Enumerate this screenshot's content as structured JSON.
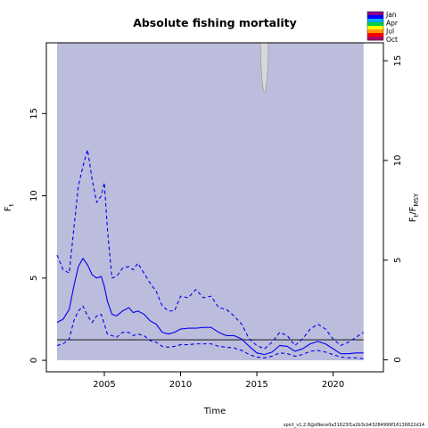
{
  "chart_data": {
    "type": "line",
    "title": "Absolute fishing mortality",
    "xlabel": "Time",
    "ylabel_left": "F",
    "ylabel_left_sub": "t",
    "ylabel_right_parts": [
      "F",
      "t",
      "/F",
      "MSY"
    ],
    "xlim": [
      2001.2,
      2023.3
    ],
    "ylim_left": [
      -0.7,
      19.3
    ],
    "ylim_right": [
      -0.6,
      15.9
    ],
    "x_ticks": [
      2005,
      2010,
      2015,
      2020
    ],
    "y_ticks_left": [
      0,
      5,
      10,
      15
    ],
    "y_ticks_right": [
      0,
      5,
      10,
      15
    ],
    "grid": false,
    "legend": {
      "placement": "top-right",
      "labels": [
        "Jan",
        "Apr",
        "Jul",
        "Oct"
      ],
      "colors": [
        "#8b008b",
        "#0000ff",
        "#00aaff",
        "#00cc44",
        "#ffff00",
        "#ff9900",
        "#ff0000",
        "#aa0066"
      ]
    },
    "credibility_band": {
      "x": [
        2001.9,
        2022.0
      ],
      "lower": 0,
      "upper": 19.3,
      "color": "#bcbddc"
    },
    "band_notch": {
      "x_center": 2015.5,
      "x_halfwidth": 0.25,
      "y_bottom": 16.3,
      "color": "#d8d8d8"
    },
    "fmsy_line": {
      "x": [
        2001.9,
        2022.0
      ],
      "y": 1.25,
      "color": "#000000"
    },
    "series": [
      {
        "role": "estimate",
        "color": "#0000ee",
        "style": "solid",
        "x": [
          2001.9,
          2002.3,
          2002.7,
          2003.0,
          2003.3,
          2003.6,
          2003.9,
          2004.2,
          2004.5,
          2004.8,
          2005.0,
          2005.2,
          2005.5,
          2005.8,
          2006.2,
          2006.6,
          2006.9,
          2007.2,
          2007.6,
          2008.0,
          2008.4,
          2008.8,
          2009.2,
          2009.6,
          2010.0,
          2010.5,
          2011.0,
          2011.5,
          2012.0,
          2012.5,
          2013.0,
          2013.5,
          2014.0,
          2014.5,
          2015.0,
          2015.5,
          2016.0,
          2016.5,
          2017.0,
          2017.5,
          2018.0,
          2018.5,
          2019.0,
          2019.5,
          2020.0,
          2020.5,
          2021.0,
          2021.5,
          2022.0
        ],
        "y": [
          2.3,
          2.5,
          3.1,
          4.5,
          5.7,
          6.2,
          5.8,
          5.2,
          5.0,
          5.1,
          4.5,
          3.6,
          2.8,
          2.7,
          3.0,
          3.2,
          2.9,
          3.0,
          2.8,
          2.4,
          2.2,
          1.7,
          1.6,
          1.7,
          1.9,
          1.95,
          1.95,
          2.0,
          2.0,
          1.7,
          1.5,
          1.5,
          1.3,
          0.85,
          0.45,
          0.35,
          0.5,
          0.9,
          0.85,
          0.55,
          0.7,
          1.0,
          1.15,
          1.0,
          0.7,
          0.4,
          0.4,
          0.45,
          0.45
        ]
      },
      {
        "role": "upper",
        "color": "#0000ee",
        "style": "dashed",
        "x": [
          2001.9,
          2002.3,
          2002.7,
          2003.0,
          2003.3,
          2003.6,
          2003.9,
          2004.2,
          2004.5,
          2004.8,
          2005.0,
          2005.2,
          2005.5,
          2005.8,
          2006.2,
          2006.6,
          2006.9,
          2007.2,
          2007.6,
          2008.0,
          2008.4,
          2008.8,
          2009.2,
          2009.6,
          2010.0,
          2010.5,
          2011.0,
          2011.5,
          2012.0,
          2012.5,
          2013.0,
          2013.5,
          2014.0,
          2014.5,
          2015.0,
          2015.5,
          2016.0,
          2016.5,
          2017.0,
          2017.5,
          2018.0,
          2018.5,
          2019.0,
          2019.5,
          2020.0,
          2020.5,
          2021.0,
          2021.5,
          2022.0
        ],
        "y": [
          6.4,
          5.5,
          5.3,
          8.0,
          10.6,
          11.8,
          12.8,
          11.0,
          9.6,
          10.0,
          10.8,
          8.0,
          5.0,
          5.1,
          5.6,
          5.7,
          5.5,
          5.9,
          5.3,
          4.7,
          4.2,
          3.3,
          3.0,
          3.0,
          3.9,
          3.8,
          4.3,
          3.8,
          3.9,
          3.2,
          3.1,
          2.7,
          2.2,
          1.3,
          0.9,
          0.7,
          1.1,
          1.7,
          1.5,
          0.9,
          1.3,
          1.9,
          2.2,
          1.9,
          1.3,
          0.9,
          1.1,
          1.4,
          1.7
        ]
      },
      {
        "role": "lower",
        "color": "#0000ee",
        "style": "dashed",
        "x": [
          2001.9,
          2002.3,
          2002.7,
          2003.0,
          2003.3,
          2003.6,
          2003.9,
          2004.2,
          2004.5,
          2004.8,
          2005.0,
          2005.2,
          2005.5,
          2005.8,
          2006.2,
          2006.6,
          2006.9,
          2007.2,
          2007.6,
          2008.0,
          2008.4,
          2008.8,
          2009.2,
          2009.6,
          2010.0,
          2010.5,
          2011.0,
          2011.5,
          2012.0,
          2012.5,
          2013.0,
          2013.5,
          2014.0,
          2014.5,
          2015.0,
          2015.5,
          2016.0,
          2016.5,
          2017.0,
          2017.5,
          2018.0,
          2018.5,
          2019.0,
          2019.5,
          2020.0,
          2020.5,
          2021.0,
          2021.5,
          2022.0
        ],
        "y": [
          0.9,
          1.0,
          1.3,
          2.4,
          3.0,
          3.3,
          2.7,
          2.3,
          2.7,
          2.8,
          2.2,
          1.6,
          1.5,
          1.4,
          1.7,
          1.7,
          1.5,
          1.6,
          1.5,
          1.2,
          1.1,
          0.85,
          0.8,
          0.85,
          0.95,
          0.95,
          1.0,
          1.0,
          1.0,
          0.85,
          0.8,
          0.75,
          0.6,
          0.35,
          0.2,
          0.15,
          0.25,
          0.45,
          0.4,
          0.25,
          0.35,
          0.55,
          0.6,
          0.5,
          0.35,
          0.2,
          0.15,
          0.15,
          0.1
        ]
      }
    ],
    "footer_text": "spict_v1.2.8@d9ece0a31623f1a2b3cb43284999f16136822d14"
  }
}
